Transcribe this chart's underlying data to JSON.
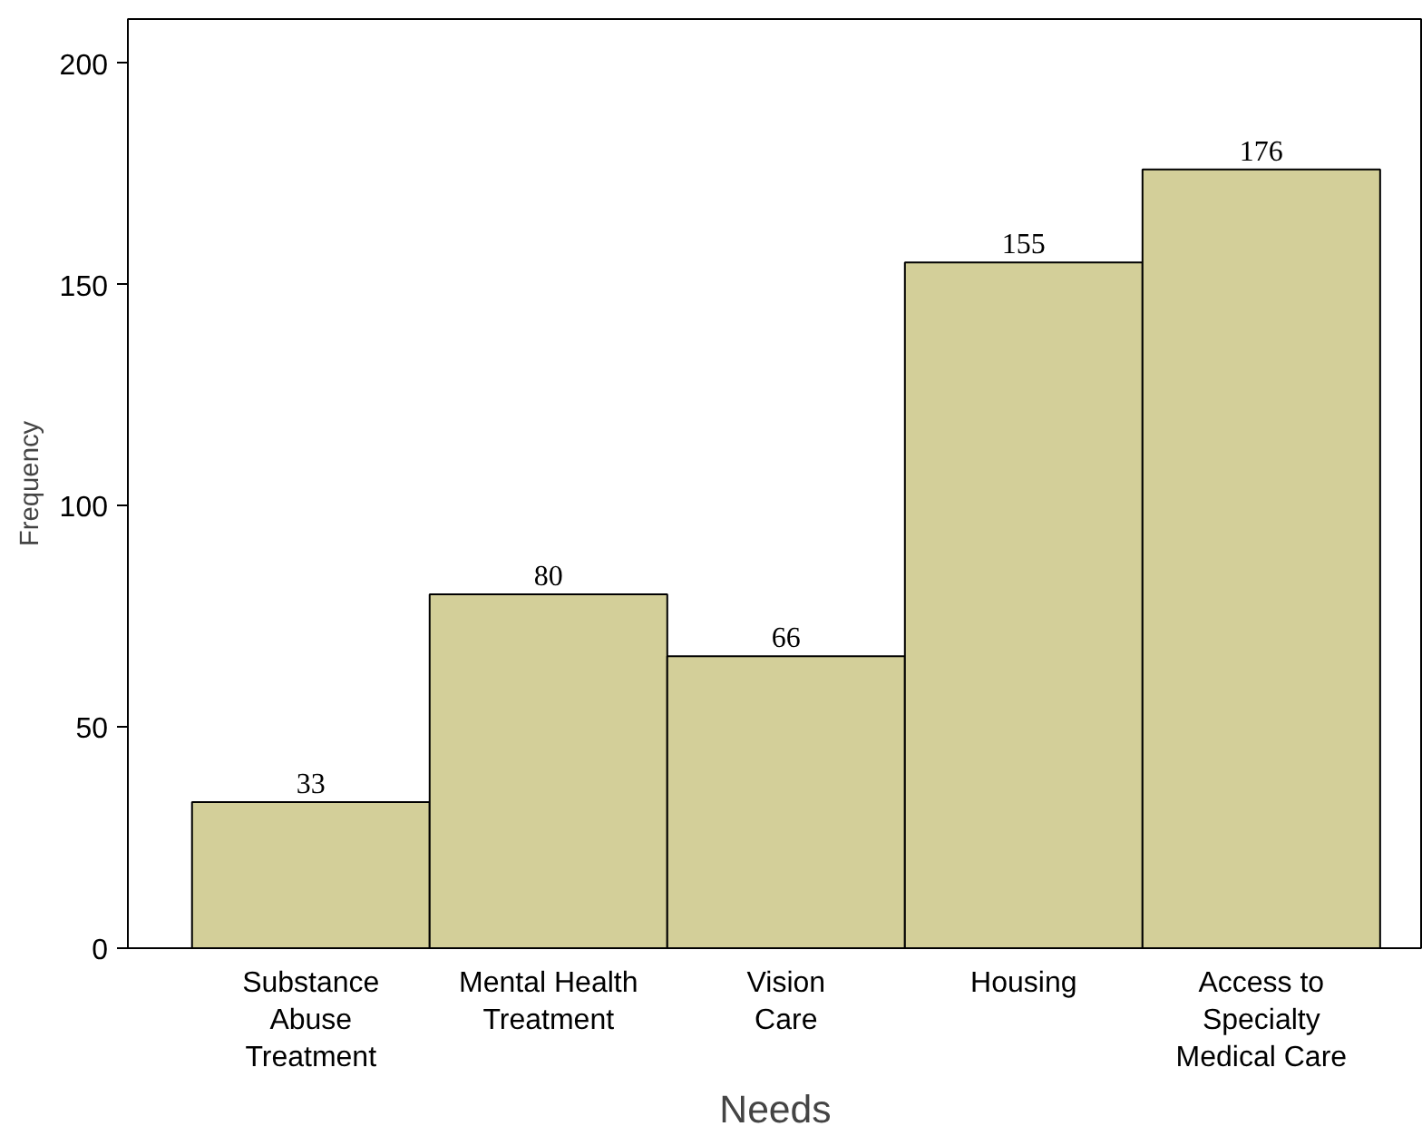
{
  "chart_data": {
    "type": "bar",
    "xlabel": "Needs",
    "ylabel": "Frequency",
    "categories": [
      "Substance\nAbuse\nTreatment",
      "Mental Health\nTreatment",
      "Vision\nCare",
      "Housing",
      "Access to\nSpecialty\nMedical Care"
    ],
    "values": [
      33,
      80,
      66,
      155,
      176
    ],
    "color": "#d3cf99",
    "ylim": [
      0,
      210
    ],
    "yticks": [
      0,
      50,
      100,
      150,
      200
    ],
    "grid": false,
    "data_labels": true
  }
}
